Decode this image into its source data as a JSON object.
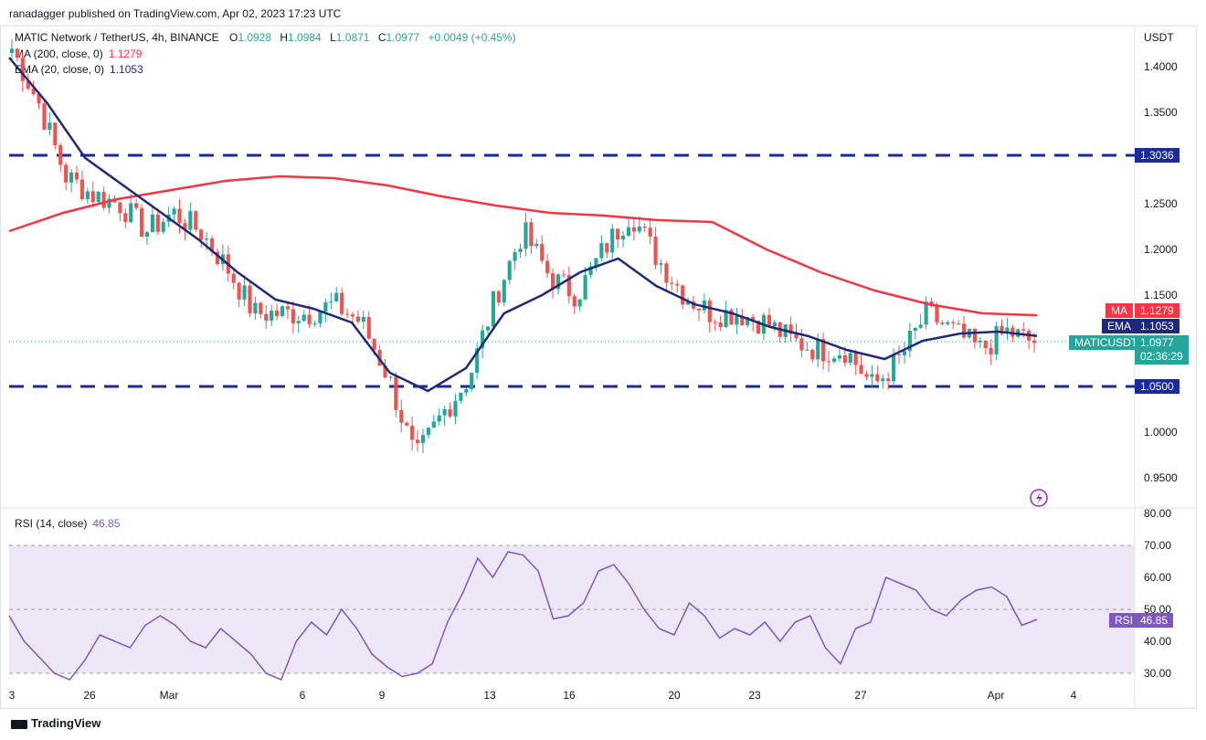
{
  "header": {
    "publisher_line": "ranadagger published on TradingView.com, Apr 02, 2023 17:23 UTC",
    "symbol_line": "MATIC Network / TetherUS, 4h, BINANCE",
    "ohlc": {
      "o_label": "O",
      "o": "1.0928",
      "h_label": "H",
      "h": "1.0984",
      "l_label": "L",
      "l": "1.0871",
      "c_label": "C",
      "c": "1.0977",
      "change": "+0.0049 (+0.45%)"
    },
    "ma_legend": "MA (200, close, 0)",
    "ma_value": "1.1279",
    "ema_legend": "EMA (20, close, 0)",
    "ema_value": "1.1053"
  },
  "price_axis": {
    "unit": "USDT",
    "ticks": [
      "1.4000",
      "1.3500",
      "1.3036",
      "1.2500",
      "1.2000",
      "1.1500",
      "1.0500",
      "1.0000",
      "0.9500"
    ]
  },
  "tags": {
    "resistance": "1.3036",
    "support": "1.0500",
    "ma_label": "MA",
    "ma_value": "1.1279",
    "ema_label": "EMA",
    "ema_value": "1.1053",
    "symbol": "MATICUSDT",
    "last": "1.0977",
    "countdown": "02:36:29",
    "rsi_label": "RSI",
    "rsi_value": "46.85"
  },
  "rsi": {
    "legend": "RSI (14, close)",
    "value": "46.85",
    "ticks": [
      "80.00",
      "70.00",
      "60.00",
      "50.00",
      "40.00",
      "30.00"
    ]
  },
  "x_axis": {
    "ticks": [
      "3",
      "26",
      "Mar",
      "6",
      "9",
      "13",
      "16",
      "20",
      "23",
      "27",
      "Apr",
      "4"
    ]
  },
  "footer": {
    "brand": "TradingView"
  },
  "colors": {
    "up": "#26a69a",
    "down": "#ef5350",
    "ma": "#f23645",
    "ema": "#1e2a78",
    "level": "#1a2a9e",
    "rsi": "#7e57c2",
    "rsi_band": "#ede7f6"
  },
  "chart_data": {
    "type": "candlestick",
    "title": "MATIC Network / TetherUS, 4h, BINANCE",
    "ylabel": "USDT",
    "ylim": [
      0.93,
      1.425
    ],
    "horizontal_levels": [
      1.3036,
      1.05
    ],
    "x_ticks": [
      "3",
      "26",
      "Mar",
      "6",
      "9",
      "13",
      "16",
      "20",
      "23",
      "27",
      "Apr",
      "4"
    ],
    "price_path": [
      [
        "Feb 23",
        1.42
      ],
      [
        "Feb 24",
        1.36
      ],
      [
        "Feb 25",
        1.28
      ],
      [
        "Feb 26",
        1.26
      ],
      [
        "Feb 27",
        1.25
      ],
      [
        "Feb 28",
        1.22
      ],
      [
        "Mar 1",
        1.24
      ],
      [
        "Mar 2",
        1.22
      ],
      [
        "Mar 3",
        1.18
      ],
      [
        "Mar 4",
        1.13
      ],
      [
        "Mar 5",
        1.13
      ],
      [
        "Mar 6",
        1.13
      ],
      [
        "Mar 7",
        1.14
      ],
      [
        "Mar 8",
        1.12
      ],
      [
        "Mar 9",
        1.06
      ],
      [
        "Mar 10",
        0.97
      ],
      [
        "Mar 11",
        1.02
      ],
      [
        "Mar 12",
        1.06
      ],
      [
        "Mar 13",
        1.15
      ],
      [
        "Mar 14",
        1.22
      ],
      [
        "Mar 15",
        1.17
      ],
      [
        "Mar 16",
        1.15
      ],
      [
        "Mar 17",
        1.2
      ],
      [
        "Mar 18",
        1.24
      ],
      [
        "Mar 19",
        1.19
      ],
      [
        "Mar 20",
        1.15
      ],
      [
        "Mar 21",
        1.13
      ],
      [
        "Mar 22",
        1.13
      ],
      [
        "Mar 23",
        1.12
      ],
      [
        "Mar 24",
        1.1
      ],
      [
        "Mar 25",
        1.09
      ],
      [
        "Mar 26",
        1.09
      ],
      [
        "Mar 27",
        1.05
      ],
      [
        "Mar 28",
        1.08
      ],
      [
        "Mar 29",
        1.13
      ],
      [
        "Mar 30",
        1.11
      ],
      [
        "Mar 31",
        1.09
      ],
      [
        "Apr 1",
        1.11
      ],
      [
        "Apr 2",
        1.0977
      ]
    ],
    "series": [
      {
        "name": "MA (200, close, 0)",
        "values": [
          1.22,
          1.24,
          1.255,
          1.265,
          1.275,
          1.28,
          1.278,
          1.27,
          1.258,
          1.248,
          1.24,
          1.237,
          1.232,
          1.23,
          1.2,
          1.175,
          1.155,
          1.14,
          1.13,
          1.1279
        ]
      },
      {
        "name": "EMA (20, close, 0)",
        "values": [
          1.41,
          1.36,
          1.3,
          1.27,
          1.24,
          1.21,
          1.175,
          1.145,
          1.135,
          1.12,
          1.065,
          1.045,
          1.07,
          1.13,
          1.15,
          1.175,
          1.19,
          1.16,
          1.14,
          1.13,
          1.115,
          1.105,
          1.09,
          1.08,
          1.1,
          1.108,
          1.11,
          1.1053
        ]
      }
    ],
    "rsi": {
      "name": "RSI (14, close)",
      "ylim": [
        26,
        82
      ],
      "band": [
        30,
        70
      ],
      "values": [
        48,
        40,
        35,
        30,
        28,
        34,
        42,
        40,
        38,
        45,
        48,
        45,
        40,
        38,
        44,
        40,
        36,
        30,
        28,
        40,
        46,
        42,
        50,
        44,
        36,
        32,
        29,
        30,
        33,
        46,
        55,
        66,
        60,
        68,
        67,
        62,
        47,
        48,
        52,
        62,
        64,
        58,
        50,
        44,
        42,
        52,
        48,
        41,
        44,
        42,
        46,
        40,
        46,
        48,
        38,
        33,
        44,
        46,
        60,
        58,
        56,
        50,
        48,
        53,
        56,
        57,
        54,
        45,
        46.85
      ]
    }
  }
}
